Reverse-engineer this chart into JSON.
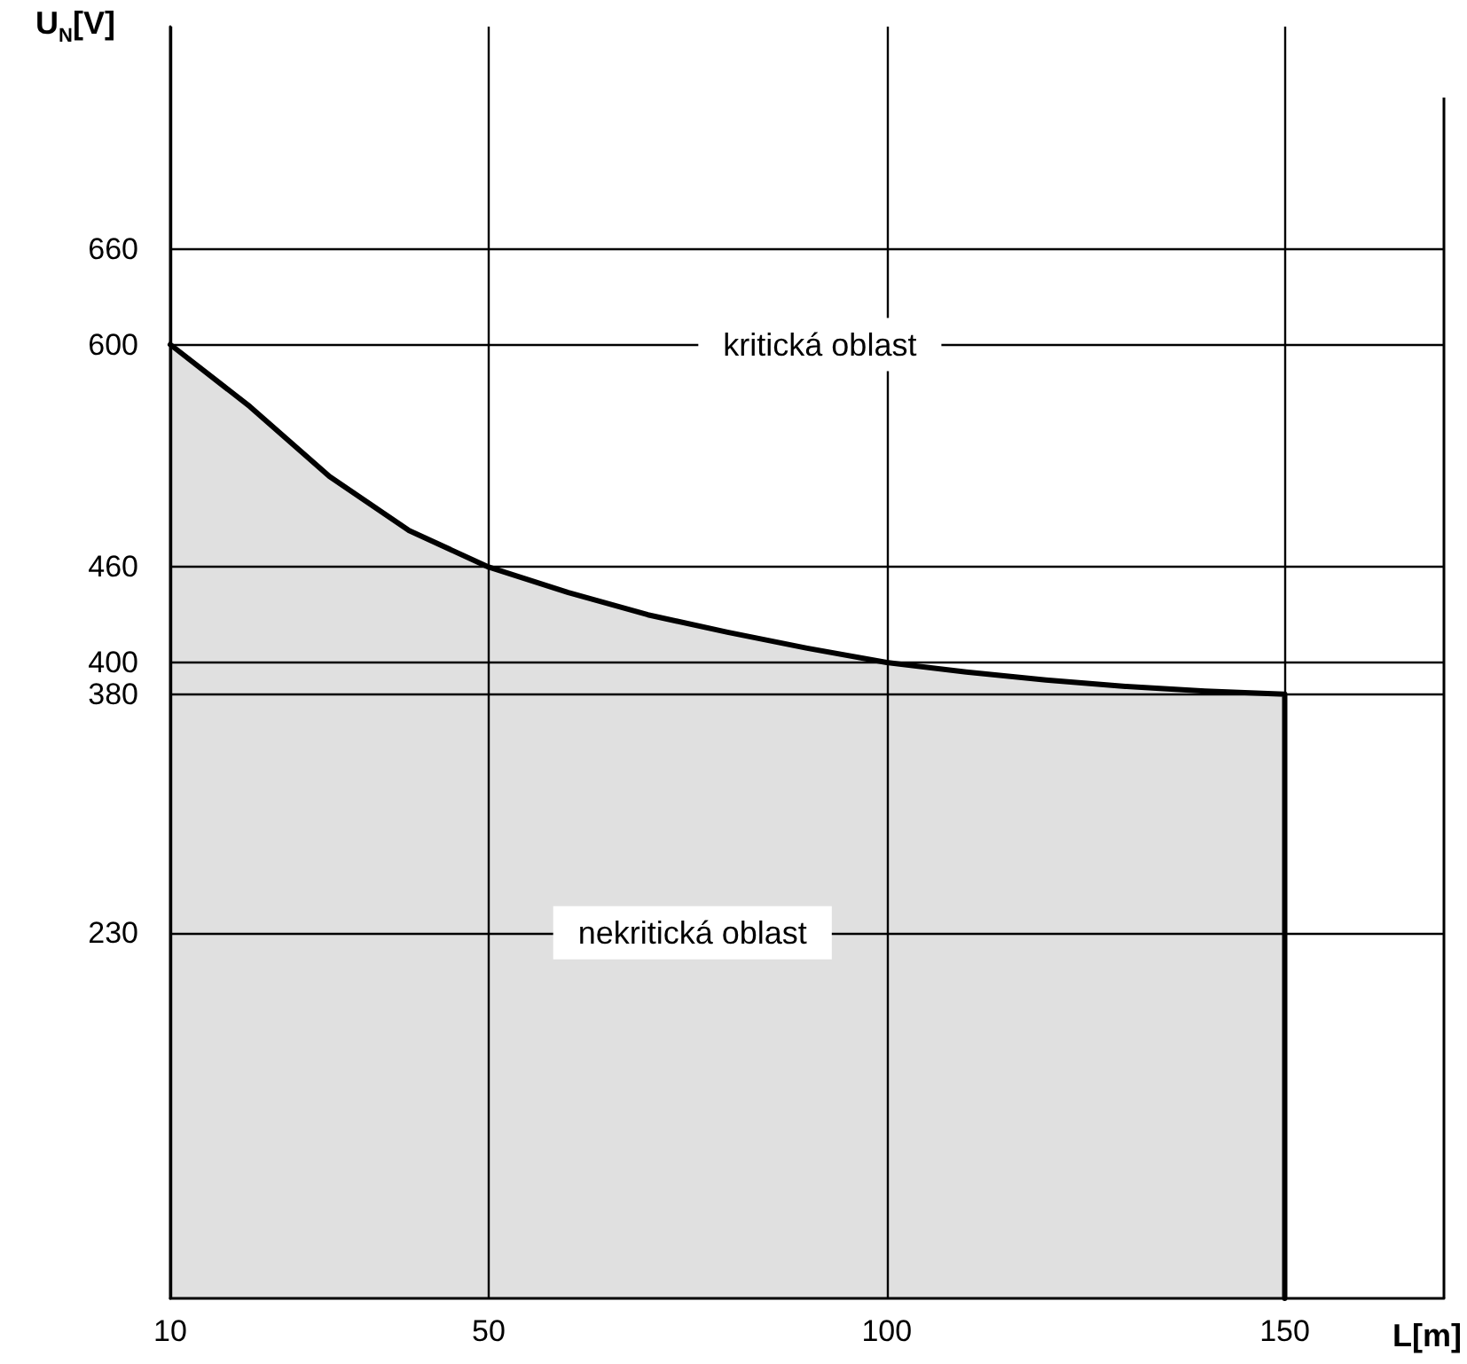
{
  "chart_data": {
    "type": "area",
    "xlabel": "L[m]",
    "ylabel": "U$_{N}$[V]",
    "x": [
      10,
      20,
      30,
      40,
      50,
      60,
      70,
      80,
      90,
      100,
      110,
      120,
      130,
      140,
      150,
      150
    ],
    "series": [
      {
        "color": "#000000",
        "values": [
          600,
          561,
          517,
          483,
          460,
          444,
          430,
          419,
          409,
          400,
          394,
          389,
          385,
          382,
          380,
          0
        ]
      }
    ],
    "xlim": [
      10,
      170
    ],
    "ylim": [
      0,
      800
    ],
    "xticks": [
      10,
      50,
      100,
      150
    ],
    "yticks": [
      230,
      380,
      400,
      460,
      600,
      660
    ],
    "grid": true,
    "marker": "none",
    "line_style": "solid",
    "annotations": [
      "kritická oblast",
      "nekritická oblast"
    ]
  }
}
